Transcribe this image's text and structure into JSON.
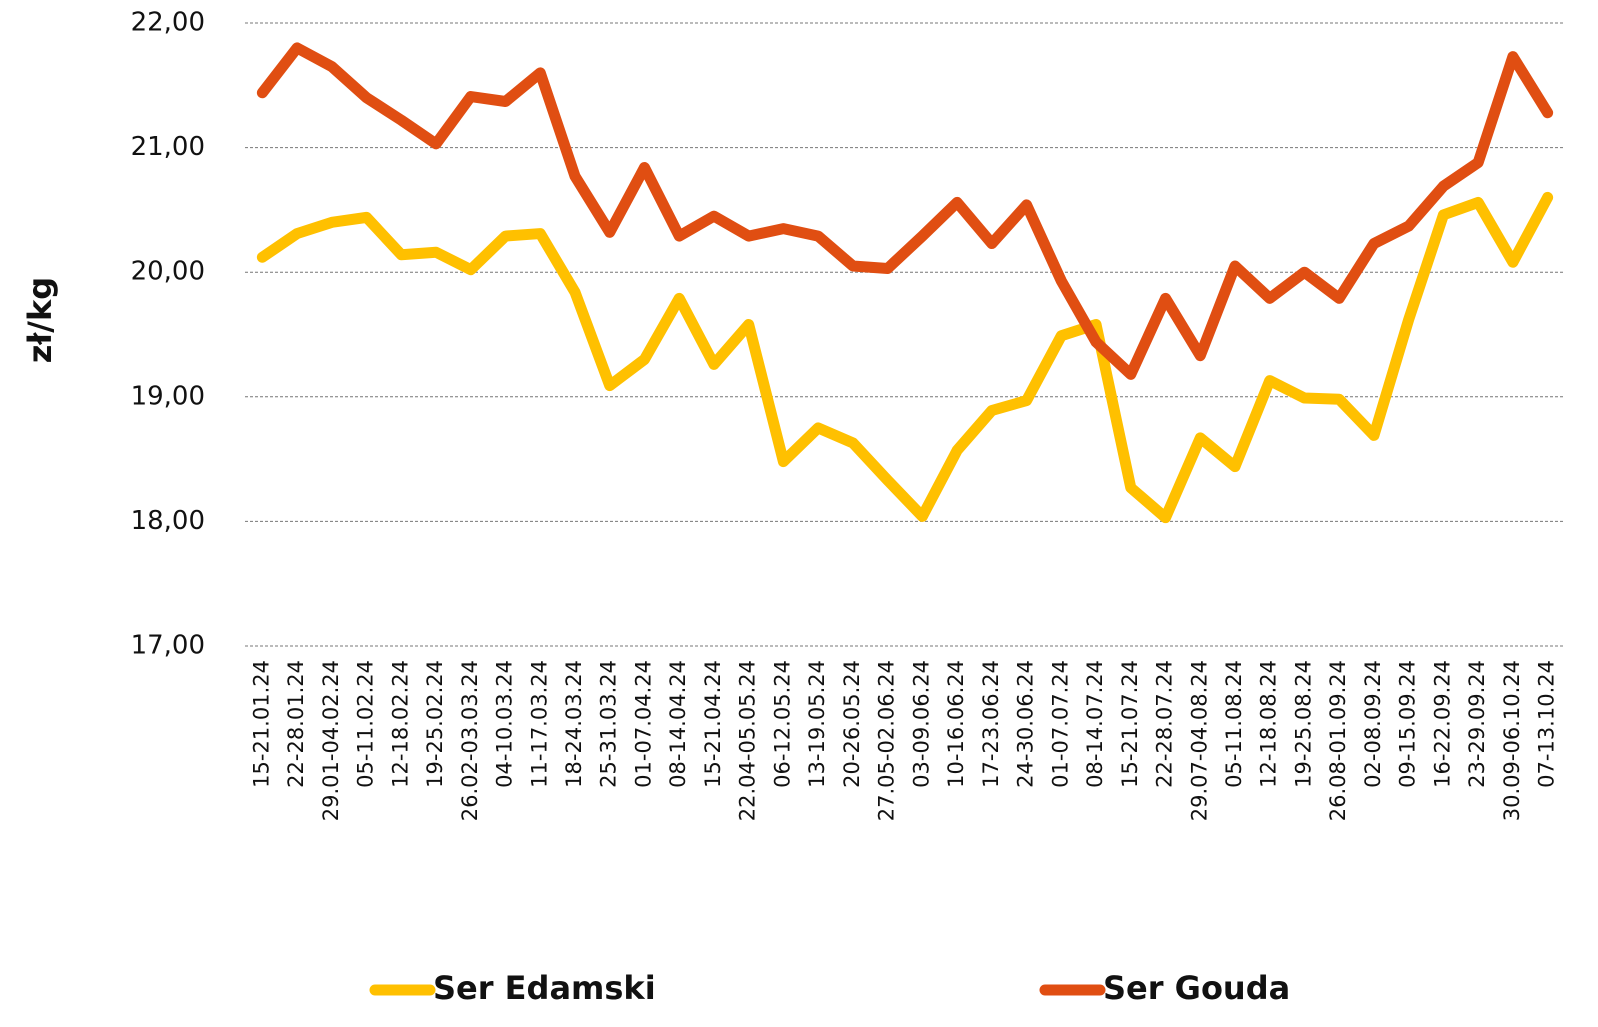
{
  "chart_data": {
    "type": "line",
    "y_label": "zł/kg",
    "categories": [
      "15-21.01.24",
      "22-28.01.24",
      "29.01-04.02.24",
      "05-11.02.24",
      "12-18.02.24",
      "19-25.02.24",
      "26.02-03.03.24",
      "04-10.03.24",
      "11-17.03.24",
      "18-24.03.24",
      "25-31.03.24",
      "01-07.04.24",
      "08-14.04.24",
      "15-21.04.24",
      "22.04-05.05.24",
      "06-12.05.24",
      "13-19.05.24",
      "20-26.05.24",
      "27.05-02.06.24",
      "03-09.06.24",
      "10-16.06.24",
      "17-23.06.24",
      "24-30.06.24",
      "01-07.07.24",
      "08-14.07.24",
      "15-21.07.24",
      "22-28.07.24",
      "29.07-04.08.24",
      "05-11.08.24",
      "12-18.08.24",
      "19-25.08.24",
      "26.08-01.09.24",
      "02-08.09.24",
      "09-15.09.24",
      "16-22.09.24",
      "23-29.09.24",
      "30.09-06.10.24",
      "07-13.10.24"
    ],
    "series": [
      {
        "name": "Ser Edamski",
        "color": "#FFC000",
        "values": [
          20.12,
          20.31,
          20.4,
          20.44,
          20.14,
          20.16,
          20.02,
          20.29,
          20.31,
          19.84,
          19.09,
          19.3,
          19.79,
          19.26,
          19.58,
          18.48,
          18.75,
          18.63,
          18.33,
          18.04,
          18.57,
          18.89,
          18.97,
          19.49,
          19.58,
          18.27,
          18.03,
          18.67,
          18.44,
          19.13,
          18.99,
          18.98,
          18.69,
          19.62,
          20.46,
          20.56,
          20.08,
          20.6
        ]
      },
      {
        "name": "Ser Gouda",
        "color": "#E04E12",
        "values": [
          21.44,
          21.8,
          21.65,
          21.4,
          21.22,
          21.03,
          21.41,
          21.37,
          21.6,
          20.77,
          20.32,
          20.84,
          20.29,
          20.45,
          20.29,
          20.35,
          20.29,
          20.05,
          20.03,
          20.29,
          20.56,
          20.23,
          20.54,
          19.93,
          19.44,
          19.18,
          19.79,
          19.33,
          20.05,
          19.79,
          20.0,
          19.79,
          20.23,
          20.37,
          20.69,
          20.88,
          21.73,
          21.28
        ]
      }
    ],
    "ylim": [
      17,
      22
    ],
    "yticks": [
      {
        "value": 17,
        "label": "17,00"
      },
      {
        "value": 18,
        "label": "18,00"
      },
      {
        "value": 19,
        "label": "19,00"
      },
      {
        "value": 20,
        "label": "20,00"
      },
      {
        "value": 21,
        "label": "21,00"
      },
      {
        "value": 22,
        "label": "22,00"
      }
    ],
    "grid": true,
    "legend": "bottom"
  }
}
